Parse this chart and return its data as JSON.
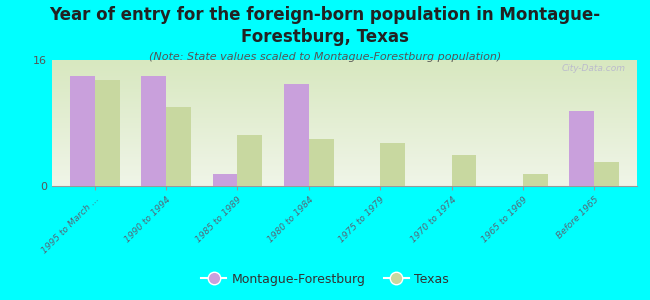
{
  "title": "Year of entry for the foreign-born population in Montague-\nForestburg, Texas",
  "subtitle": "(Note: State values scaled to Montague-Forestburg population)",
  "categories": [
    "1995 to March ...",
    "1990 to 1994",
    "1985 to 1989",
    "1980 to 1984",
    "1975 to 1979",
    "1970 to 1974",
    "1965 to 1969",
    "Before 1965"
  ],
  "montague_values": [
    14.0,
    14.0,
    1.5,
    13.0,
    0.0,
    0.0,
    0.0,
    9.5
  ],
  "texas_values": [
    13.5,
    10.0,
    6.5,
    6.0,
    5.5,
    4.0,
    1.5,
    3.0
  ],
  "montague_color": "#c9a0dc",
  "texas_color": "#c8d8a0",
  "background_color": "#00ffff",
  "plot_bg_top": "#d8e8c0",
  "plot_bg_bottom": "#f0f5e8",
  "ylim": [
    0,
    16
  ],
  "yticks": [
    0,
    16
  ],
  "bar_width": 0.35,
  "watermark": "City-Data.com",
  "title_fontsize": 12,
  "subtitle_fontsize": 8
}
